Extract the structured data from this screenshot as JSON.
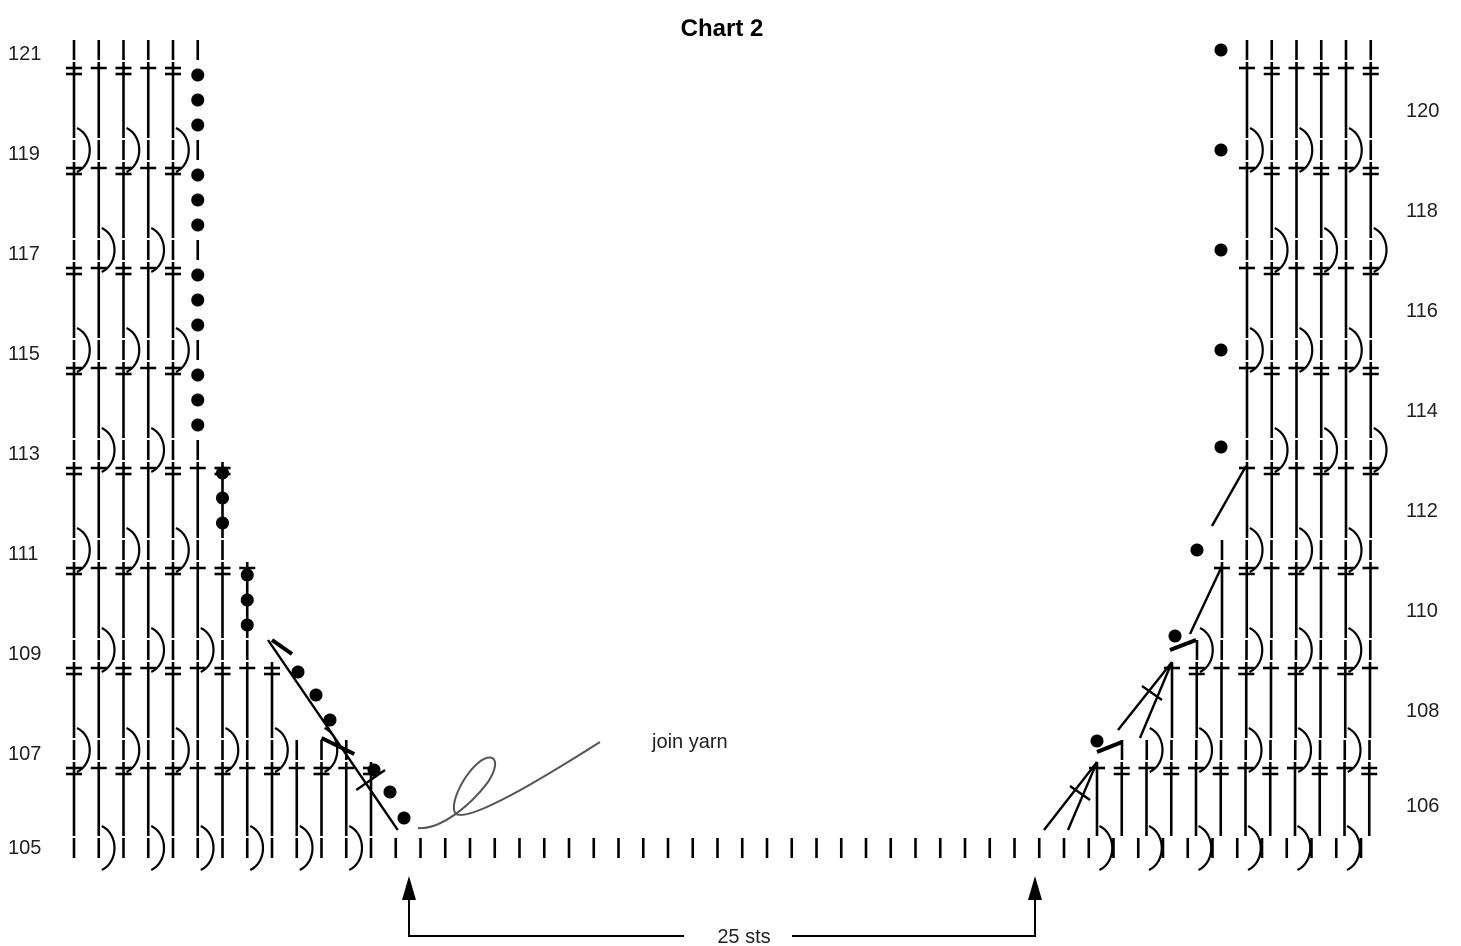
{
  "title": "Chart 2",
  "rows_left": [
    "121",
    "119",
    "117",
    "115",
    "113",
    "111",
    "109",
    "107",
    "105"
  ],
  "rows_right": [
    "120",
    "118",
    "116",
    "114",
    "112",
    "110",
    "108",
    "106"
  ],
  "annotation": "join yarn",
  "span_label": "25 sts",
  "legend_symbols": [
    "chain (dot)",
    "single crochet (short bar)",
    "double crochet (crossed post)",
    "front post double crochet (bracket)",
    "decrease (slanted line)"
  ],
  "colors": {
    "ink": "#000000",
    "yarn": "#555555",
    "text": "#231f20"
  }
}
